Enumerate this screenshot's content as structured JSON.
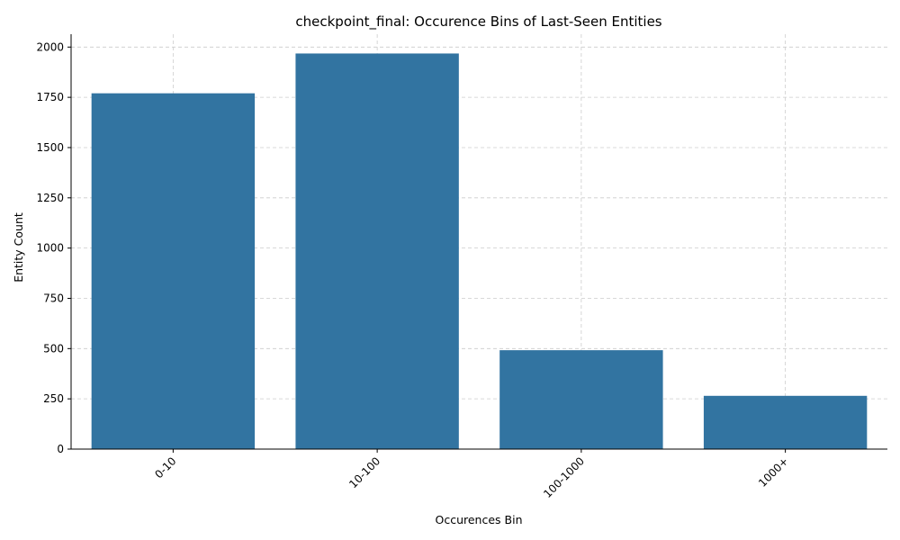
{
  "chart_data": {
    "type": "bar",
    "title": "checkpoint_final: Occurence Bins of Last-Seen Entities",
    "xlabel": "Occurences Bin",
    "ylabel": "Entity Count",
    "categories": [
      "0-10",
      "10-100",
      "100-1000",
      "1000+"
    ],
    "values": [
      1770,
      1968,
      492,
      265
    ],
    "ylim": [
      0,
      2064
    ],
    "yticks": [
      0,
      250,
      500,
      750,
      1000,
      1250,
      1500,
      1750,
      2000
    ],
    "grid": true,
    "bar_color": "#3274a1"
  }
}
